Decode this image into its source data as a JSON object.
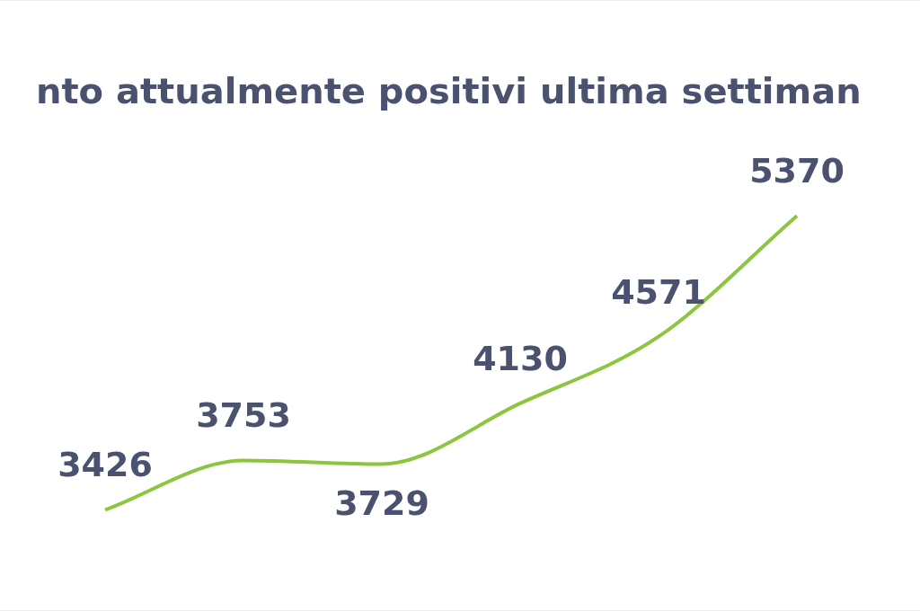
{
  "chart_data": {
    "type": "line",
    "title": "nto attualmente positivi ultima settiman",
    "categories": [
      null,
      null,
      null,
      null,
      null,
      null
    ],
    "series": [
      {
        "color": "#8cc63f",
        "values": [
          3426,
          3753,
          3729,
          4130,
          4571,
          5370
        ]
      }
    ],
    "data_labels": true,
    "marker": "none",
    "legend": false
  }
}
